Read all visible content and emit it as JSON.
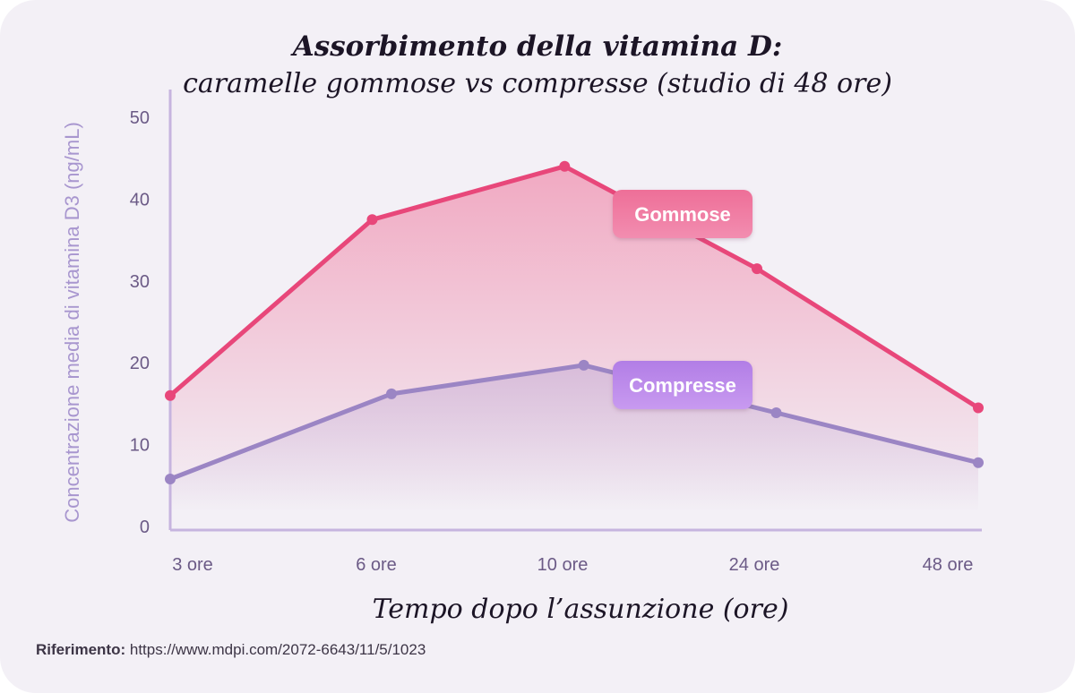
{
  "chart_data": {
    "type": "line",
    "title": "Assorbimento della vitamina D:",
    "subtitle": "caramelle gommose vs compresse (studio di 48 ore)",
    "xlabel": "Tempo dopo l’assunzione (ore)",
    "ylabel": "Concentrazione media di vitamina D3 (ng/mL)",
    "ylim": [
      0,
      50
    ],
    "yticks": [
      "0",
      "10",
      "20",
      "30",
      "40",
      "50"
    ],
    "categories": [
      "3 ore",
      "6 ore",
      "10 ore",
      "24 ore",
      "48 ore"
    ],
    "series": [
      {
        "name": "Gommose",
        "color": "#e8477a",
        "x": [
          0,
          1.05,
          2.05,
          3.05,
          4.2
        ],
        "values": [
          16,
          37.5,
          44,
          31.5,
          14.5
        ]
      },
      {
        "name": "Compresse",
        "color": "#9b85c4",
        "x": [
          0,
          1.15,
          2.15,
          3.15,
          4.2
        ],
        "values": [
          5.8,
          16.2,
          19.7,
          13.9,
          7.8
        ]
      }
    ],
    "grid": false
  },
  "reference": {
    "label": "Riferimento:",
    "url": "https://www.mdpi.com/2072-6643/11/5/1023"
  }
}
